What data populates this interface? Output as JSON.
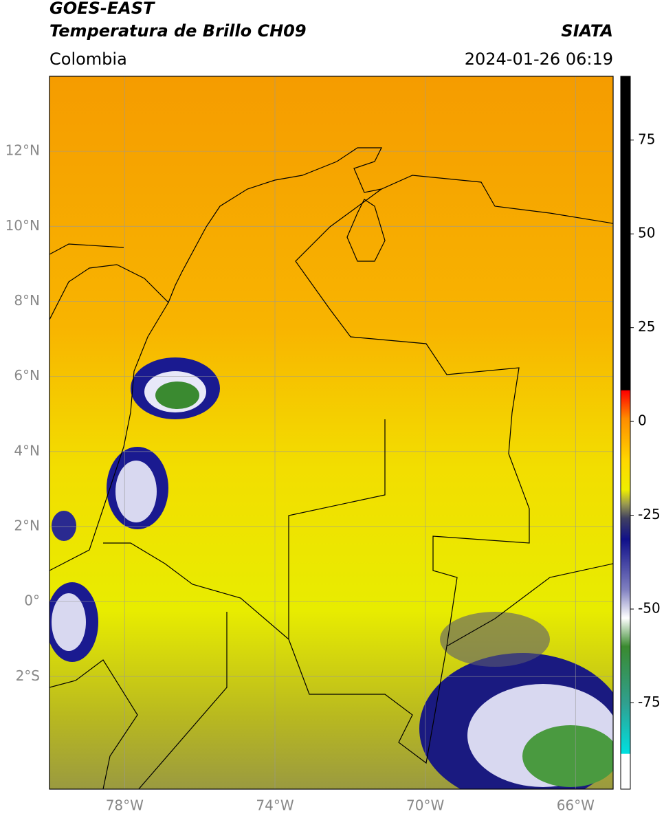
{
  "header": {
    "title": "GOES-EAST",
    "subtitle": "Temperatura de Brillo CH09",
    "source": "SIATA",
    "region": "Colombia",
    "datetime": "2024-01-26 06:19"
  },
  "map": {
    "lon_range": [
      -80,
      -65
    ],
    "lat_range": [
      -5,
      14
    ],
    "lon_ticks": [
      {
        "value": -78,
        "label": "78°W"
      },
      {
        "value": -74,
        "label": "74°W"
      },
      {
        "value": -70,
        "label": "70°W"
      },
      {
        "value": -66,
        "label": "66°W"
      }
    ],
    "lat_ticks": [
      {
        "value": 12,
        "label": "12°N"
      },
      {
        "value": 10,
        "label": "10°N"
      },
      {
        "value": 8,
        "label": "8°N"
      },
      {
        "value": 6,
        "label": "6°N"
      },
      {
        "value": 4,
        "label": "4°N"
      },
      {
        "value": 2,
        "label": "2°N"
      },
      {
        "value": 0,
        "label": "0°"
      },
      {
        "value": -2,
        "label": "2°S"
      }
    ]
  },
  "colorbar": {
    "range": [
      -98,
      92
    ],
    "ticks": [
      75,
      50,
      25,
      0,
      -25,
      -50,
      -75
    ]
  }
}
